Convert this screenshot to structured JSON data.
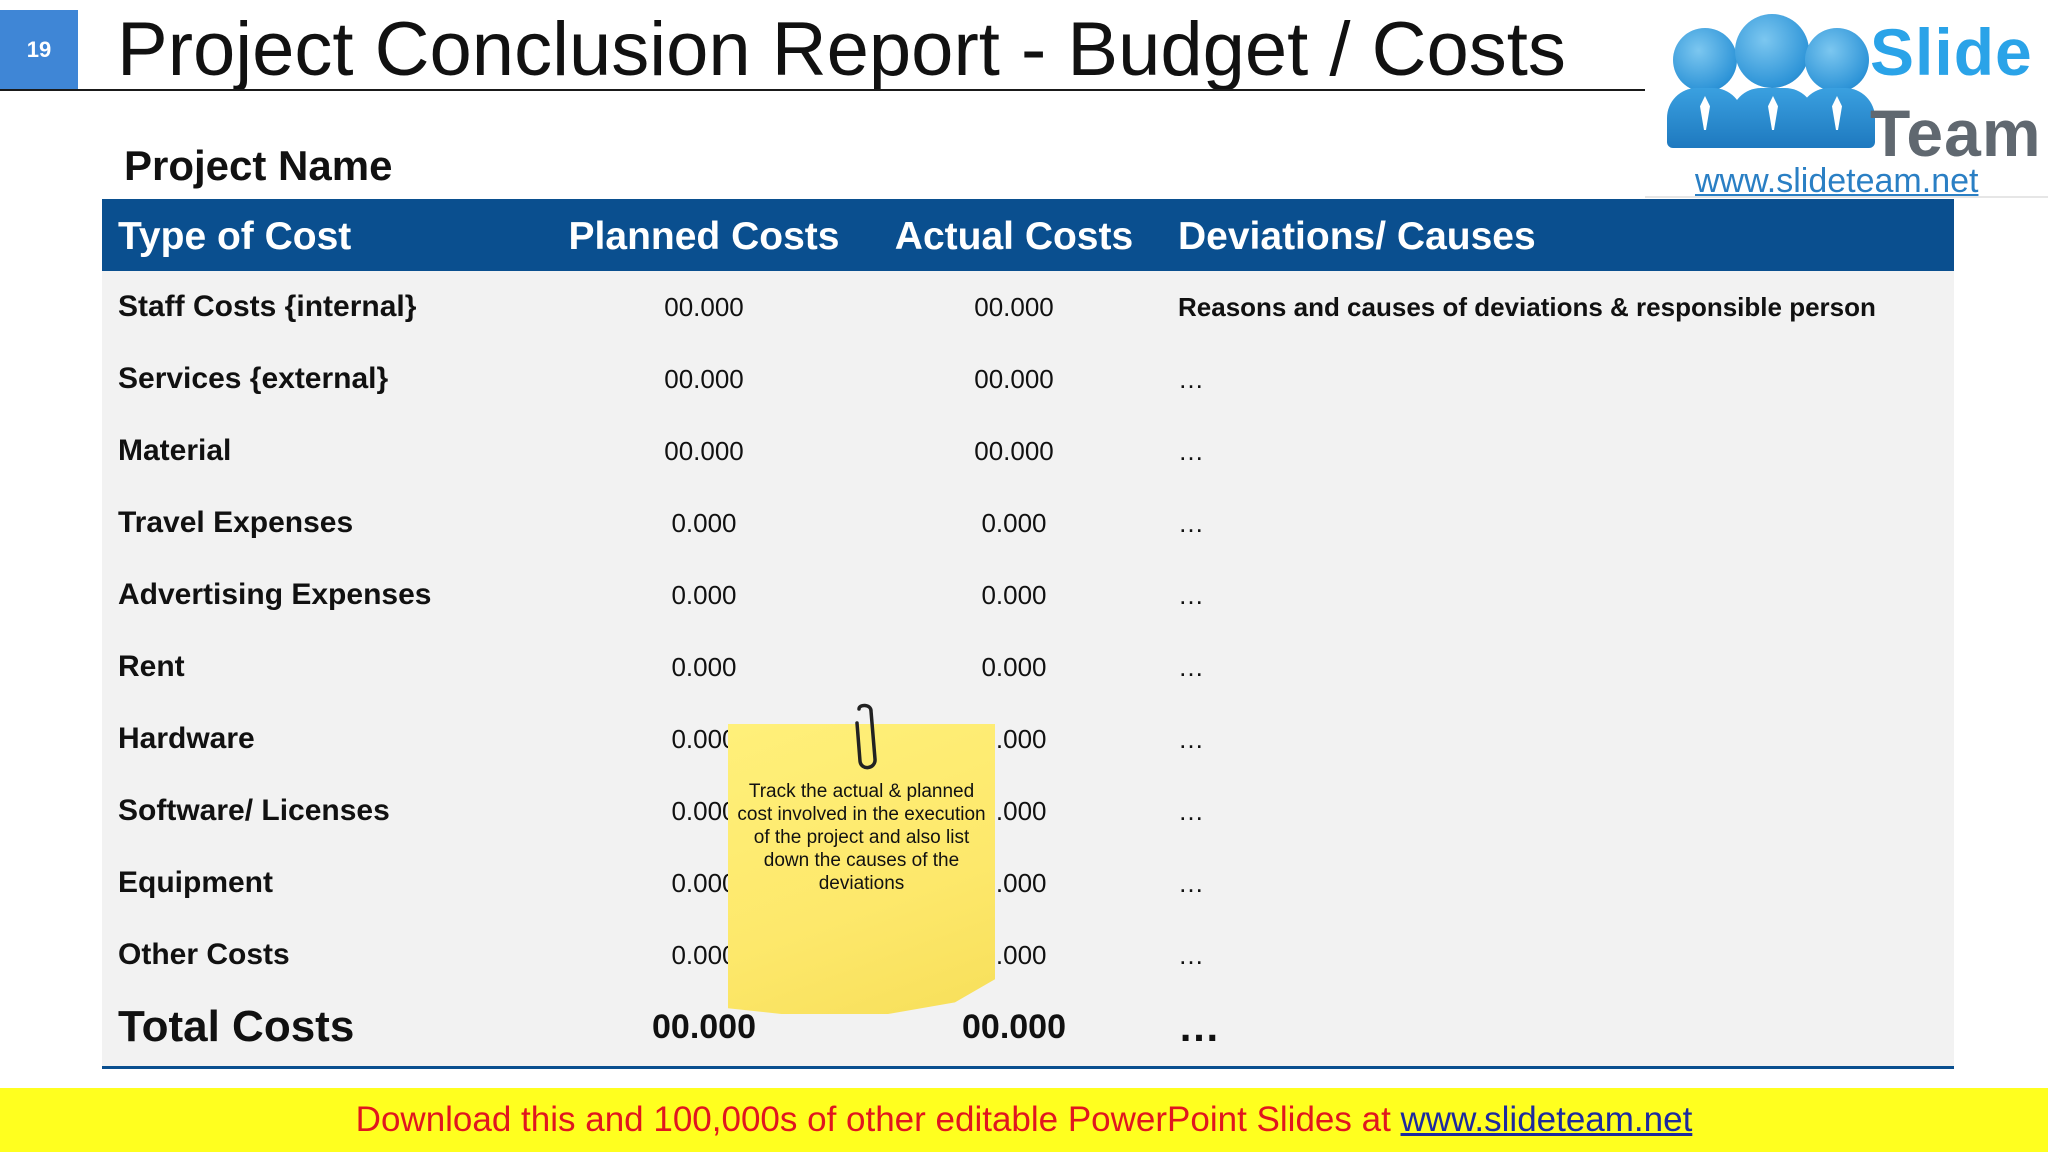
{
  "slide": {
    "number": "19",
    "title": "Project Conclusion Report - Budget / Costs"
  },
  "logo": {
    "word1": "Slide",
    "word2": "Team",
    "url": "www.slideteam.net"
  },
  "project_name": "Project Name",
  "table": {
    "headers": [
      "Type of Cost",
      "Planned Costs",
      "Actual Costs",
      "Deviations/ Causes"
    ],
    "rows": [
      {
        "type": "Staff Costs {internal}",
        "planned": "00.000",
        "actual": "00.000",
        "deviation": "Reasons and causes of deviations & responsible person"
      },
      {
        "type": "Services {external}",
        "planned": "00.000",
        "actual": "00.000",
        "deviation": "…"
      },
      {
        "type": "Material",
        "planned": "00.000",
        "actual": "00.000",
        "deviation": "…"
      },
      {
        "type": "Travel Expenses",
        "planned": "0.000",
        "actual": "0.000",
        "deviation": "…"
      },
      {
        "type": "Advertising Expenses",
        "planned": "0.000",
        "actual": "0.000",
        "deviation": "…"
      },
      {
        "type": "Rent",
        "planned": "0.000",
        "actual": "0.000",
        "deviation": "…"
      },
      {
        "type": "Hardware",
        "planned": "0.000",
        "actual": "0.000",
        "deviation": "…"
      },
      {
        "type": "Software/ Licenses",
        "planned": "0.000",
        "actual": "0.000",
        "deviation": "…"
      },
      {
        "type": "Equipment",
        "planned": "0.000",
        "actual": "0.000",
        "deviation": "…"
      },
      {
        "type": "Other Costs",
        "planned": "0.000",
        "actual": "0.000",
        "deviation": "…"
      }
    ],
    "total": {
      "type": "Total Costs",
      "planned": "00.000",
      "actual": "00.000",
      "deviation": "…"
    }
  },
  "sticky_note": "Track the actual & planned cost involved in the execution of the project and also list down the causes of the deviations",
  "footer": {
    "text": "Download this and 100,000s of other editable PowerPoint Slides at ",
    "link": "www.slideteam.net"
  },
  "colors": {
    "header_blue": "#0a4f8f",
    "slide_num_blue": "#3f86d6",
    "footer_yellow": "#ffff1f",
    "footer_red": "#e0161f",
    "sticky_yellow": "#fde86b"
  }
}
